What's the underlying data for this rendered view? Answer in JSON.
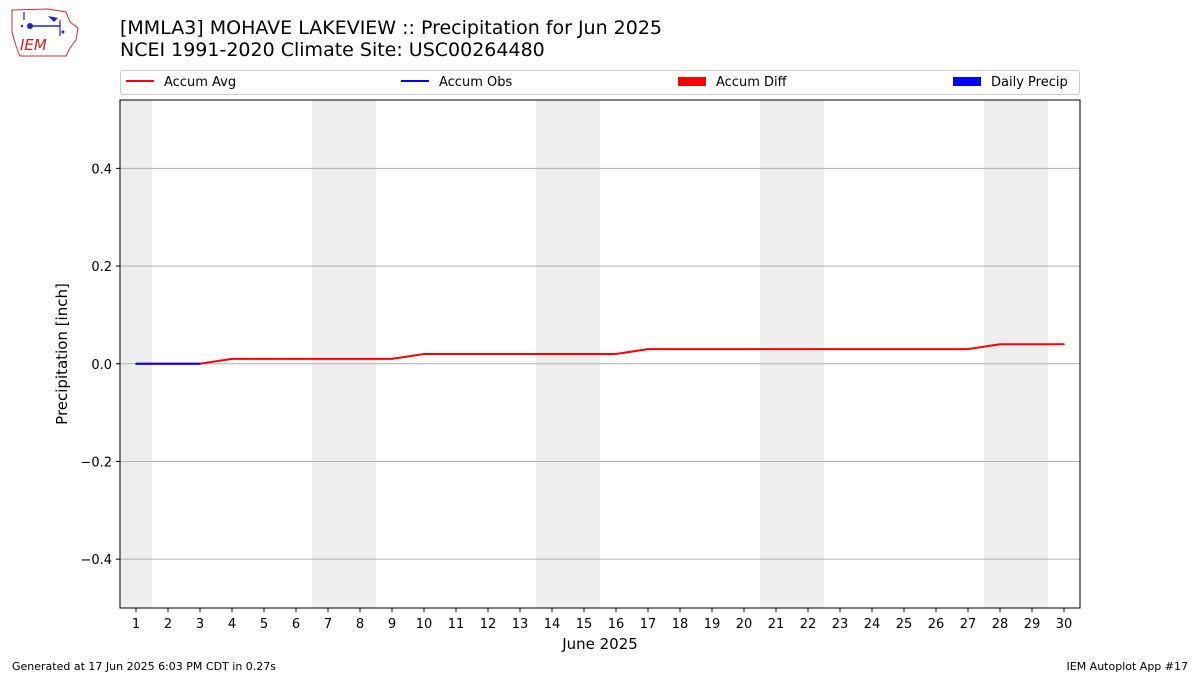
{
  "title_line1": "[MMLA3] MOHAVE LAKEVIEW :: Precipitation for Jun 2025",
  "title_line2": "NCEI 1991-2020 Climate Site: USC00264480",
  "footer_left": "Generated at 17 Jun 2025 6:03 PM CDT in 0.27s",
  "footer_right": "IEM Autoplot App #17",
  "logo_text": "IEM",
  "colors": {
    "accum_avg": "#ff0000",
    "accum_obs": "#0000ff",
    "accum_diff": "#ff0000",
    "daily_precip": "#0000ff",
    "weekend_band": "#eeeeee",
    "grid": "#b0b0b0"
  },
  "chart_data": {
    "type": "line",
    "xlabel": "June 2025",
    "ylabel": "Precipitation [inch]",
    "xlim": [
      0.5,
      30.5
    ],
    "ylim": [
      -0.5,
      0.54
    ],
    "x_ticks": [
      1,
      2,
      3,
      4,
      5,
      6,
      7,
      8,
      9,
      10,
      11,
      12,
      13,
      14,
      15,
      16,
      17,
      18,
      19,
      20,
      21,
      22,
      23,
      24,
      25,
      26,
      27,
      28,
      29,
      30
    ],
    "y_ticks": [
      -0.4,
      -0.2,
      0.0,
      0.2,
      0.4
    ],
    "y_tick_labels": [
      "−0.4",
      "−0.2",
      "0.0",
      "0.2",
      "0.4"
    ],
    "grid": "horizontal",
    "legend_position": "top",
    "weekend_days": [
      1,
      7,
      8,
      14,
      15,
      21,
      22,
      28,
      29
    ],
    "legend": [
      {
        "label": "Accum Avg",
        "kind": "line",
        "color": "#ff0000"
      },
      {
        "label": "Accum Obs",
        "kind": "line",
        "color": "#0000ff"
      },
      {
        "label": "Accum Diff",
        "kind": "patch",
        "color": "#ff0000"
      },
      {
        "label": "Daily Precip",
        "kind": "patch",
        "color": "#0000ff"
      }
    ],
    "series": [
      {
        "name": "Accum Avg",
        "color": "#ff0000",
        "x": [
          1,
          2,
          3,
          4,
          5,
          6,
          7,
          8,
          9,
          10,
          11,
          12,
          13,
          14,
          15,
          16,
          17,
          18,
          19,
          20,
          21,
          22,
          23,
          24,
          25,
          26,
          27,
          28,
          29,
          30
        ],
        "values": [
          0,
          0,
          0,
          0.01,
          0.01,
          0.01,
          0.01,
          0.01,
          0.01,
          0.02,
          0.02,
          0.02,
          0.02,
          0.02,
          0.02,
          0.02,
          0.03,
          0.03,
          0.03,
          0.03,
          0.03,
          0.03,
          0.03,
          0.03,
          0.03,
          0.03,
          0.03,
          0.04,
          0.04,
          0.04
        ]
      },
      {
        "name": "Accum Obs",
        "color": "#0000ff",
        "x": [
          1,
          2,
          3
        ],
        "values": [
          0,
          0,
          0
        ]
      }
    ]
  }
}
